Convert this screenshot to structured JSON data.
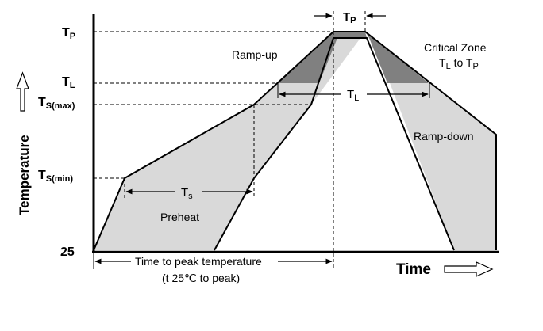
{
  "axes": {
    "y_title": "Temperature",
    "x_title": "Time",
    "y_tick_levels": [
      {
        "main": "T",
        "sub": "P"
      },
      {
        "main": "T",
        "sub": "L"
      },
      {
        "main": "T",
        "sub": "S(max)"
      },
      {
        "main": "T",
        "sub": "S(min)"
      },
      {
        "main": "25",
        "sub": ""
      }
    ]
  },
  "regions": {
    "ramp_up": "Ramp-up",
    "preheat": "Preheat",
    "ramp_down": "Ramp-down",
    "critical_zone_line1": "Critical Zone",
    "critical_zone_line2": {
      "t1": "T",
      "s1": "L",
      "to": " to ",
      "t2": "T",
      "s2": "P"
    }
  },
  "durations": {
    "tp": {
      "main": "T",
      "sub": "P"
    },
    "tl": {
      "main": "T",
      "sub": "L"
    },
    "ts": {
      "main": "T",
      "sub": "s"
    }
  },
  "time_to_peak": {
    "line1": "Time to peak temperature",
    "line2": "(t 25℃ to peak)"
  },
  "colors": {
    "region_fill": "#d9d9d9",
    "critical_fill": "#808080",
    "line": "#000000"
  }
}
